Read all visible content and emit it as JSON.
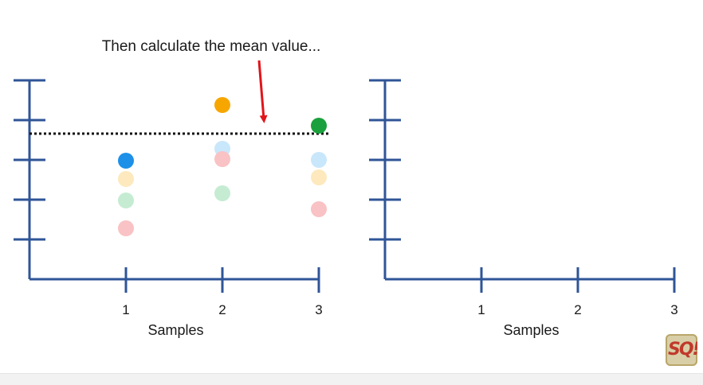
{
  "caption": "Then calculate the mean value...",
  "colors": {
    "axis": "#2f5597",
    "arrow": "#e0151b",
    "mean_line": "#111111",
    "blue": "#1e90e8",
    "orange": "#f7a600",
    "green": "#1aa03c",
    "pale_blue": "#c9e7fb",
    "pale_orange": "#fde9bd",
    "pale_green": "#c5ecd2",
    "pale_red": "#f9c2c4"
  },
  "logo": {
    "text": "SQ!",
    "icon": "statquest-logo-icon"
  },
  "chart_data": [
    {
      "type": "scatter",
      "xlabel": "Samples",
      "ylabel": "",
      "x_ticks": [
        "1",
        "2",
        "3"
      ],
      "y_tick_count": 5,
      "xlim": [
        0,
        3
      ],
      "ylim": [
        0,
        5
      ],
      "mean_line": 3.66,
      "points": [
        {
          "sample": 1,
          "y": 2.98,
          "color": "blue",
          "highlight": true
        },
        {
          "sample": 1,
          "y": 2.52,
          "color": "pale_orange",
          "highlight": false
        },
        {
          "sample": 1,
          "y": 1.98,
          "color": "pale_green",
          "highlight": false
        },
        {
          "sample": 1,
          "y": 1.28,
          "color": "pale_red",
          "highlight": false
        },
        {
          "sample": 2,
          "y": 4.38,
          "color": "orange",
          "highlight": true
        },
        {
          "sample": 2,
          "y": 3.28,
          "color": "pale_blue",
          "highlight": false
        },
        {
          "sample": 2,
          "y": 3.02,
          "color": "pale_red",
          "highlight": false
        },
        {
          "sample": 2,
          "y": 2.16,
          "color": "pale_green",
          "highlight": false
        },
        {
          "sample": 3,
          "y": 3.86,
          "color": "green",
          "highlight": true
        },
        {
          "sample": 3,
          "y": 3.0,
          "color": "pale_blue",
          "highlight": false
        },
        {
          "sample": 3,
          "y": 2.56,
          "color": "pale_orange",
          "highlight": false
        },
        {
          "sample": 3,
          "y": 1.76,
          "color": "pale_red",
          "highlight": false
        }
      ]
    },
    {
      "type": "scatter",
      "xlabel": "Samples",
      "ylabel": "",
      "x_ticks": [
        "1",
        "2",
        "3"
      ],
      "y_tick_count": 5,
      "xlim": [
        0,
        3
      ],
      "ylim": [
        0,
        5
      ],
      "points": []
    }
  ]
}
